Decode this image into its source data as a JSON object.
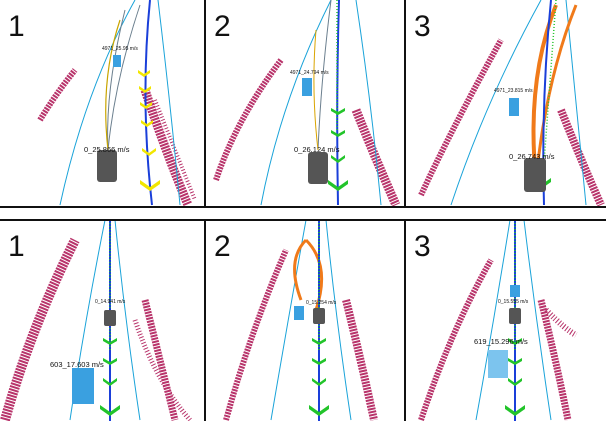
{
  "rows": [
    {
      "panels": [
        {
          "number": "1",
          "ego_label": "0_25.866 m/s",
          "obj_label": "4971_25.95 m/s"
        },
        {
          "number": "2",
          "ego_label": "0_26.124 m/s",
          "obj_label": "4971_24.794 m/s"
        },
        {
          "number": "3",
          "ego_label": "0_26.743 m/s",
          "obj_label": "4971_23.815 m/s"
        }
      ]
    },
    {
      "panels": [
        {
          "number": "1",
          "ego_label": "603_17.603 m/s",
          "obj_label": "0_14.941 m/s"
        },
        {
          "number": "2",
          "ego_label": "",
          "obj_label": "0_15.254 m/s"
        },
        {
          "number": "3",
          "ego_label": "619_15.296 m/s",
          "obj_label": "0_15.555 m/s"
        }
      ]
    }
  ],
  "colors": {
    "road_boundary": "#b8336a",
    "lane_line": "#1aa3d9",
    "ego_path": "#1a3fd9",
    "marker_yellow": "#f2e600",
    "marker_green": "#22c42a",
    "trajectory_orange": "#f07a1a",
    "vehicle_gray": "#555555",
    "vehicle_blue": "#3aa0e0"
  }
}
